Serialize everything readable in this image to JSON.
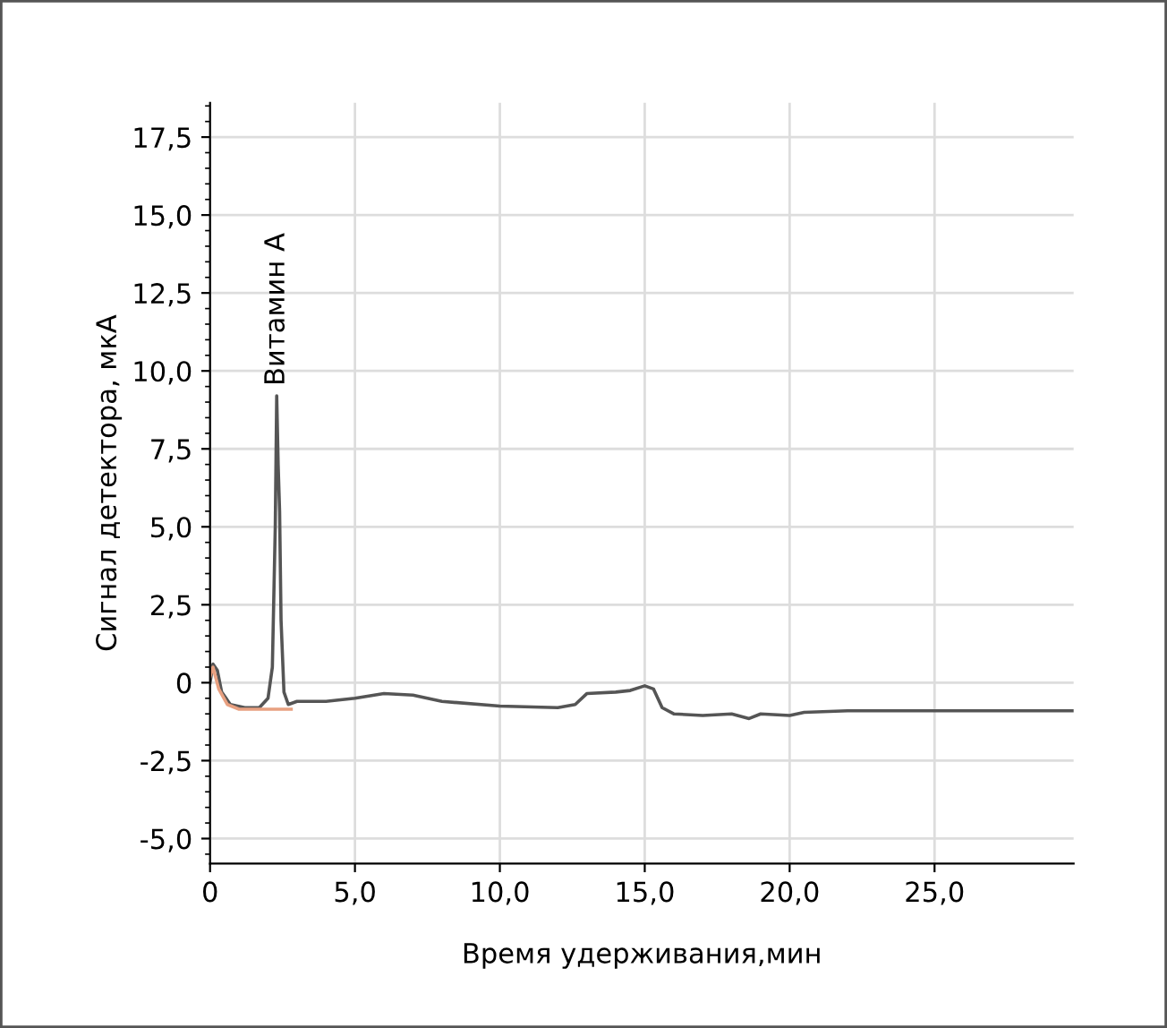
{
  "chart_data": {
    "type": "line",
    "xlabel": "Время удерживания,мин",
    "ylabel": "Сигнал детектора, мкА",
    "series": [
      {
        "color": "#555555",
        "x": [
          0,
          0.1,
          0.25,
          0.4,
          0.7,
          1.2,
          1.7,
          2.0,
          2.15,
          2.25,
          2.3,
          2.35,
          2.4,
          2.45,
          2.55,
          2.7,
          3.0,
          4,
          5,
          6,
          7,
          8,
          10,
          12,
          12.6,
          13,
          14,
          14.5,
          15,
          15.3,
          15.6,
          16,
          17,
          18,
          18.6,
          19,
          20,
          20.5,
          22,
          25,
          29.8
        ],
        "values": [
          0,
          0.6,
          0.4,
          -0.3,
          -0.7,
          -0.8,
          -0.8,
          -0.5,
          0.5,
          5,
          9.2,
          7,
          5.5,
          2,
          -0.3,
          -0.7,
          -0.6,
          -0.6,
          -0.5,
          -0.35,
          -0.4,
          -0.6,
          -0.75,
          -0.8,
          -0.7,
          -0.35,
          -0.3,
          -0.25,
          -0.1,
          -0.2,
          -0.8,
          -1.0,
          -1.05,
          -1.0,
          -1.15,
          -1.0,
          -1.05,
          -0.95,
          -0.9,
          -0.9,
          -0.9
        ]
      },
      {
        "color": "#e8a080",
        "x": [
          0,
          0.1,
          0.3,
          0.6,
          1,
          2,
          2.8
        ],
        "values": [
          0.2,
          0.5,
          -0.2,
          -0.7,
          -0.85,
          -0.85,
          -0.85
        ]
      }
    ],
    "annotations": [
      {
        "text": "Витамин А",
        "x": 2.3,
        "y": 9.2
      }
    ],
    "xlim": [
      0,
      29.8
    ],
    "ylim": [
      -5.8,
      18.6
    ],
    "xticks": [
      0,
      {
        "value": 5,
        "label": "5,0"
      },
      {
        "value": 10,
        "label": "10,0"
      },
      {
        "value": 15,
        "label": "15,0"
      },
      {
        "value": 20,
        "label": "20,0"
      },
      {
        "value": 25,
        "label": "25,0"
      }
    ],
    "yticks": [
      {
        "value": -5,
        "label": "-5,0"
      },
      {
        "value": -2.5,
        "label": "-2,5"
      },
      0,
      {
        "value": 2.5,
        "label": "2,5"
      },
      {
        "value": 5,
        "label": "5,0"
      },
      {
        "value": 7.5,
        "label": "7,5"
      },
      {
        "value": 10,
        "label": "10,0"
      },
      {
        "value": 12.5,
        "label": "12,5"
      },
      {
        "value": 15,
        "label": "15,0"
      },
      {
        "value": 17.5,
        "label": "17,5"
      }
    ],
    "grid": true,
    "line_style": "solid"
  }
}
